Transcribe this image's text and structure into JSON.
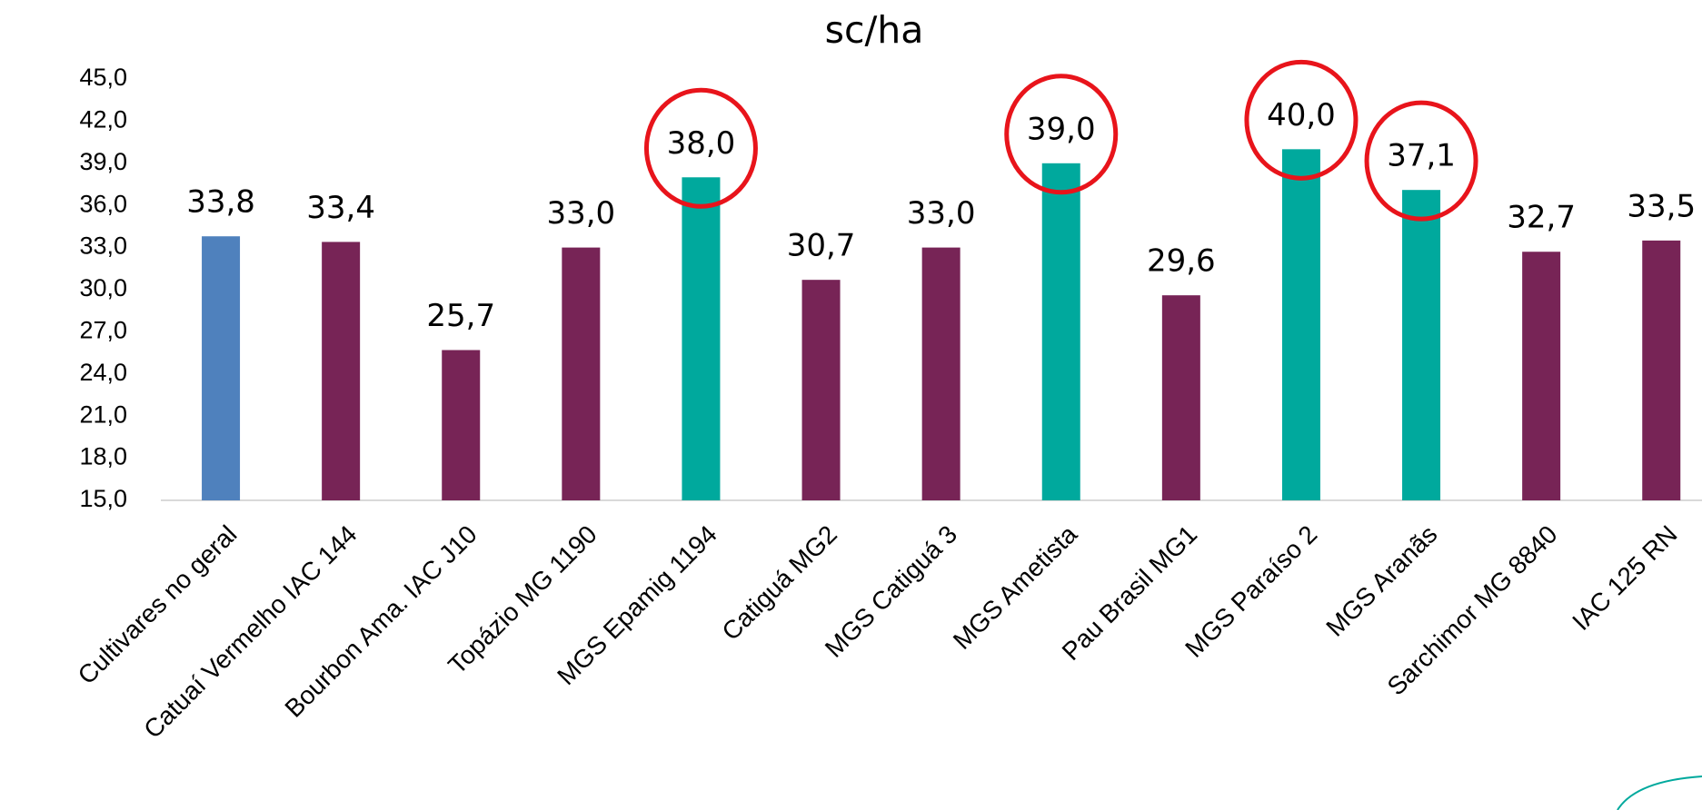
{
  "chart_data": {
    "type": "bar",
    "title": "sc/ha",
    "categories": [
      "Cultivares no geral",
      "Catuaí Vermelho IAC 144",
      "Bourbon Ama. IAC J10",
      "Topázio MG 1190",
      "MGS Epamig 1194",
      "Catiguá MG2",
      "MGS Catiguá 3",
      "MGS Ametista",
      "Pau Brasil MG1",
      "MGS Paraíso 2",
      "MGS Aranãs",
      "Sarchimor MG 8840",
      "IAC 125 RN"
    ],
    "values": [
      33.8,
      33.4,
      25.7,
      33.0,
      38.0,
      30.7,
      33.0,
      39.0,
      29.6,
      40.0,
      37.1,
      32.7,
      33.5
    ],
    "value_labels": [
      "33,8",
      "33,4",
      "25,7",
      "33,0",
      "38,0",
      "30,7",
      "33,0",
      "39,0",
      "29,6",
      "40,0",
      "37,1",
      "32,7",
      "33,5"
    ],
    "colors": [
      "#4f81bd",
      "#772456",
      "#772456",
      "#772456",
      "#00a99d",
      "#772456",
      "#772456",
      "#00a99d",
      "#772456",
      "#00a99d",
      "#00a99d",
      "#772456",
      "#772456"
    ],
    "circled": [
      false,
      false,
      false,
      false,
      true,
      false,
      false,
      true,
      false,
      true,
      true,
      false,
      false
    ],
    "circle_color": "#e8141b",
    "ylim": [
      15,
      45
    ],
    "yticks": [
      {
        "value": 15,
        "label": "15,0"
      },
      {
        "value": 18,
        "label": "18,0"
      },
      {
        "value": 21,
        "label": "21,0"
      },
      {
        "value": 24,
        "label": "24,0"
      },
      {
        "value": 27,
        "label": "27,0"
      },
      {
        "value": 30,
        "label": "30,0"
      },
      {
        "value": 33,
        "label": "33,0"
      },
      {
        "value": 36,
        "label": "36,0"
      },
      {
        "value": 39,
        "label": "39,0"
      },
      {
        "value": 42,
        "label": "42,0"
      },
      {
        "value": 45,
        "label": "45,0"
      }
    ]
  }
}
